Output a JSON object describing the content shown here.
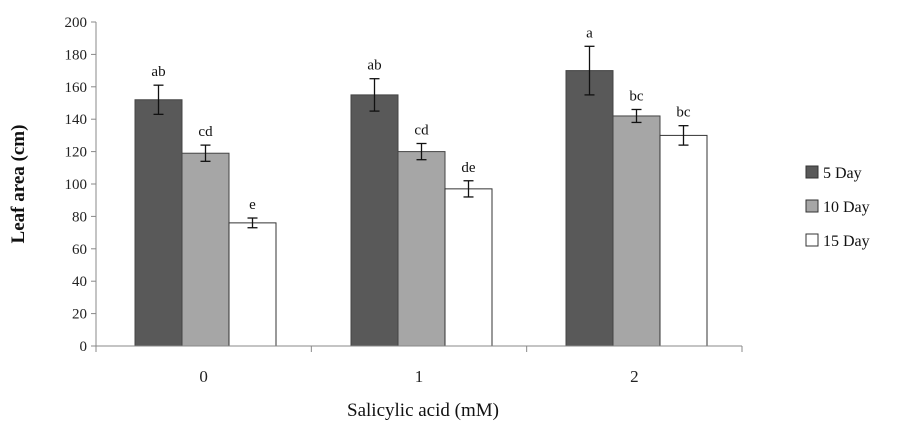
{
  "chart_data": {
    "type": "bar",
    "title": "",
    "xlabel": "Salicylic acid (mM)",
    "ylabel": "Leaf area (cm)",
    "ylim": [
      0,
      200
    ],
    "yticks": [
      0,
      20,
      40,
      60,
      80,
      100,
      120,
      140,
      160,
      180,
      200
    ],
    "categories": [
      "0",
      "1",
      "2"
    ],
    "legend_position": "right",
    "grid": false,
    "series": [
      {
        "name": "5 Day",
        "color": "#595959",
        "values": [
          152,
          155,
          170
        ],
        "errors": [
          9,
          10,
          15
        ],
        "labels": [
          "ab",
          "ab",
          "a"
        ]
      },
      {
        "name": "10 Day",
        "color": "#a6a6a6",
        "values": [
          119,
          120,
          142
        ],
        "errors": [
          5,
          5,
          4
        ],
        "labels": [
          "cd",
          "cd",
          "bc"
        ]
      },
      {
        "name": "15 Day",
        "color": "#ffffff",
        "values": [
          76,
          97,
          130
        ],
        "errors": [
          3,
          5,
          6
        ],
        "labels": [
          "e",
          "de",
          "bc"
        ]
      }
    ]
  }
}
